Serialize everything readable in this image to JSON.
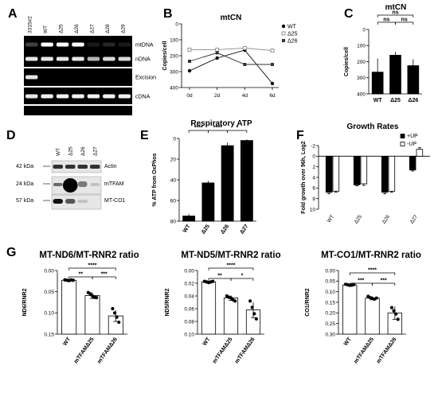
{
  "panels": {
    "A": "A",
    "B": "B",
    "C": "C",
    "D": "D",
    "E": "E",
    "F": "F",
    "G": "G"
  },
  "gelA": {
    "lanes": [
      "3315#2",
      "WT",
      "Δ25",
      "Δ26",
      "Δ27",
      "Δ28",
      "Δ29"
    ],
    "rows": [
      "mtDNA",
      "nDNA",
      "Excision",
      "cDNA"
    ]
  },
  "blotD": {
    "lanes": [
      "WT",
      "Δ25",
      "Δ26",
      "Δ27"
    ],
    "markers": [
      "42 kDa",
      "24 kDa",
      "57 kDa"
    ],
    "bands": [
      "Actin",
      "mTFAM",
      "MT-CO1"
    ]
  },
  "chart_data": [
    {
      "id": "B",
      "type": "line",
      "title": "mtCN",
      "ylabel": "Copies/cell",
      "categories": [
        "0d",
        "2d",
        "4d",
        "6d"
      ],
      "ylim": [
        0,
        400
      ],
      "yticks": [
        0,
        100,
        200,
        300,
        400
      ],
      "series": [
        {
          "name": "WT",
          "values": [
            295,
            215,
            165,
            375
          ],
          "color": "#000000",
          "marker": "circle"
        },
        {
          "name": "Δ25",
          "values": [
            162,
            162,
            152,
            168
          ],
          "color": "#888888",
          "marker": "square-open"
        },
        {
          "name": "Δ26",
          "values": [
            235,
            182,
            255,
            255
          ],
          "color": "#333333",
          "marker": "square"
        }
      ],
      "legend": "top-right"
    },
    {
      "id": "C",
      "type": "bar",
      "title": "mtCN",
      "ylabel": "Copies/cell",
      "categories": [
        "WT",
        "Δ25",
        "Δ26"
      ],
      "values": [
        265,
        160,
        225
      ],
      "errors": [
        85,
        20,
        40
      ],
      "ylim": [
        0,
        400
      ],
      "yticks": [
        0,
        100,
        200,
        300,
        400
      ],
      "significance": [
        {
          "from": 0,
          "to": 1,
          "label": "ns"
        },
        {
          "from": 1,
          "to": 2,
          "label": "ns"
        },
        {
          "from": 0,
          "to": 2,
          "label": "ns"
        }
      ]
    },
    {
      "id": "E",
      "type": "bar",
      "title": "Respiratory ATP",
      "ylabel": "% ATP from OxPhos",
      "categories": [
        "WT",
        "Δ25",
        "Δ26",
        "Δ27"
      ],
      "values": [
        75,
        43,
        7,
        2
      ],
      "errors": [
        2,
        2,
        3,
        1
      ],
      "ylim": [
        0,
        80
      ],
      "yticks": [
        0,
        20,
        40,
        60,
        80
      ],
      "significance": [
        {
          "from": 0,
          "to": 1,
          "label": "****"
        },
        {
          "from": 1,
          "to": 2,
          "label": "****"
        },
        {
          "from": 2,
          "to": 3,
          "label": "*"
        }
      ]
    },
    {
      "id": "F",
      "type": "bar",
      "title": "Growth Rates",
      "ylabel": "Fold growth over 96h, Log2",
      "categories": [
        "WT",
        "Δ25",
        "Δ26",
        "Δ27"
      ],
      "series": [
        {
          "name": "+UP",
          "values": [
            6.8,
            5.4,
            6.8,
            2.6
          ],
          "errors": [
            0.3,
            0.2,
            0.3,
            0.2
          ],
          "color": "#000000"
        },
        {
          "name": "-UP",
          "values": [
            6.6,
            5.2,
            6.6,
            -1.3
          ],
          "errors": [
            0.2,
            0.3,
            0.2,
            0.3
          ],
          "color": "#ffffff"
        }
      ],
      "ylim": [
        -2,
        10
      ],
      "yticks": [
        -2,
        0,
        2,
        4,
        6,
        8,
        10
      ],
      "legend": "top-right"
    },
    {
      "id": "G1",
      "type": "bar",
      "title": "MT-ND6/MT-RNR2 ratio",
      "ylabel": "ND6/RNR2",
      "categories": [
        "WT",
        "mTFAMΔ25",
        "mTFAMΔ26"
      ],
      "values": [
        0.023,
        0.059,
        0.107
      ],
      "errors": [
        0.002,
        0.007,
        0.013
      ],
      "points": [
        [
          0.022,
          0.023,
          0.024,
          0.022,
          0.023
        ],
        [
          0.052,
          0.055,
          0.06,
          0.063,
          0.064
        ],
        [
          0.09,
          0.1,
          0.11,
          0.122
        ]
      ],
      "ylim": [
        0,
        0.15
      ],
      "yticks": [
        0.0,
        0.05,
        0.1,
        0.15
      ],
      "significance": [
        {
          "from": 0,
          "to": 1,
          "label": "**"
        },
        {
          "from": 1,
          "to": 2,
          "label": "***"
        },
        {
          "from": 0,
          "to": 2,
          "label": "****"
        }
      ]
    },
    {
      "id": "G2",
      "type": "bar",
      "title": "MT-ND5/MT-RNR2 ratio",
      "ylabel": "ND5/RNR2",
      "categories": [
        "WT",
        "mTFAMΔ25",
        "mTFAMΔ26"
      ],
      "values": [
        0.018,
        0.043,
        0.062
      ],
      "errors": [
        0.002,
        0.004,
        0.012
      ],
      "points": [
        [
          0.017,
          0.018,
          0.019,
          0.018,
          0.017
        ],
        [
          0.04,
          0.042,
          0.043,
          0.046,
          0.048
        ],
        [
          0.048,
          0.058,
          0.068,
          0.076
        ]
      ],
      "ylim": [
        0,
        0.1
      ],
      "yticks": [
        0.0,
        0.02,
        0.04,
        0.06,
        0.08,
        0.1
      ],
      "significance": [
        {
          "from": 0,
          "to": 1,
          "label": "**"
        },
        {
          "from": 1,
          "to": 2,
          "label": "*"
        },
        {
          "from": 0,
          "to": 2,
          "label": "****"
        }
      ]
    },
    {
      "id": "G3",
      "type": "bar",
      "title": "MT-CO1/MT-RNR2 ratio",
      "ylabel": "CO1/RNR2",
      "categories": [
        "WT",
        "mTFAMΔ25",
        "mTFAMΔ26"
      ],
      "values": [
        0.068,
        0.13,
        0.2
      ],
      "errors": [
        0.004,
        0.008,
        0.03
      ],
      "points": [
        [
          0.065,
          0.067,
          0.07,
          0.069,
          0.066
        ],
        [
          0.122,
          0.128,
          0.132,
          0.135,
          0.13
        ],
        [
          0.175,
          0.19,
          0.205,
          0.23
        ]
      ],
      "ylim": [
        0,
        0.3
      ],
      "yticks": [
        0.0,
        0.05,
        0.1,
        0.15,
        0.2,
        0.25,
        0.3
      ],
      "significance": [
        {
          "from": 0,
          "to": 1,
          "label": "***"
        },
        {
          "from": 1,
          "to": 2,
          "label": "***"
        },
        {
          "from": 0,
          "to": 2,
          "label": "****"
        }
      ]
    }
  ]
}
